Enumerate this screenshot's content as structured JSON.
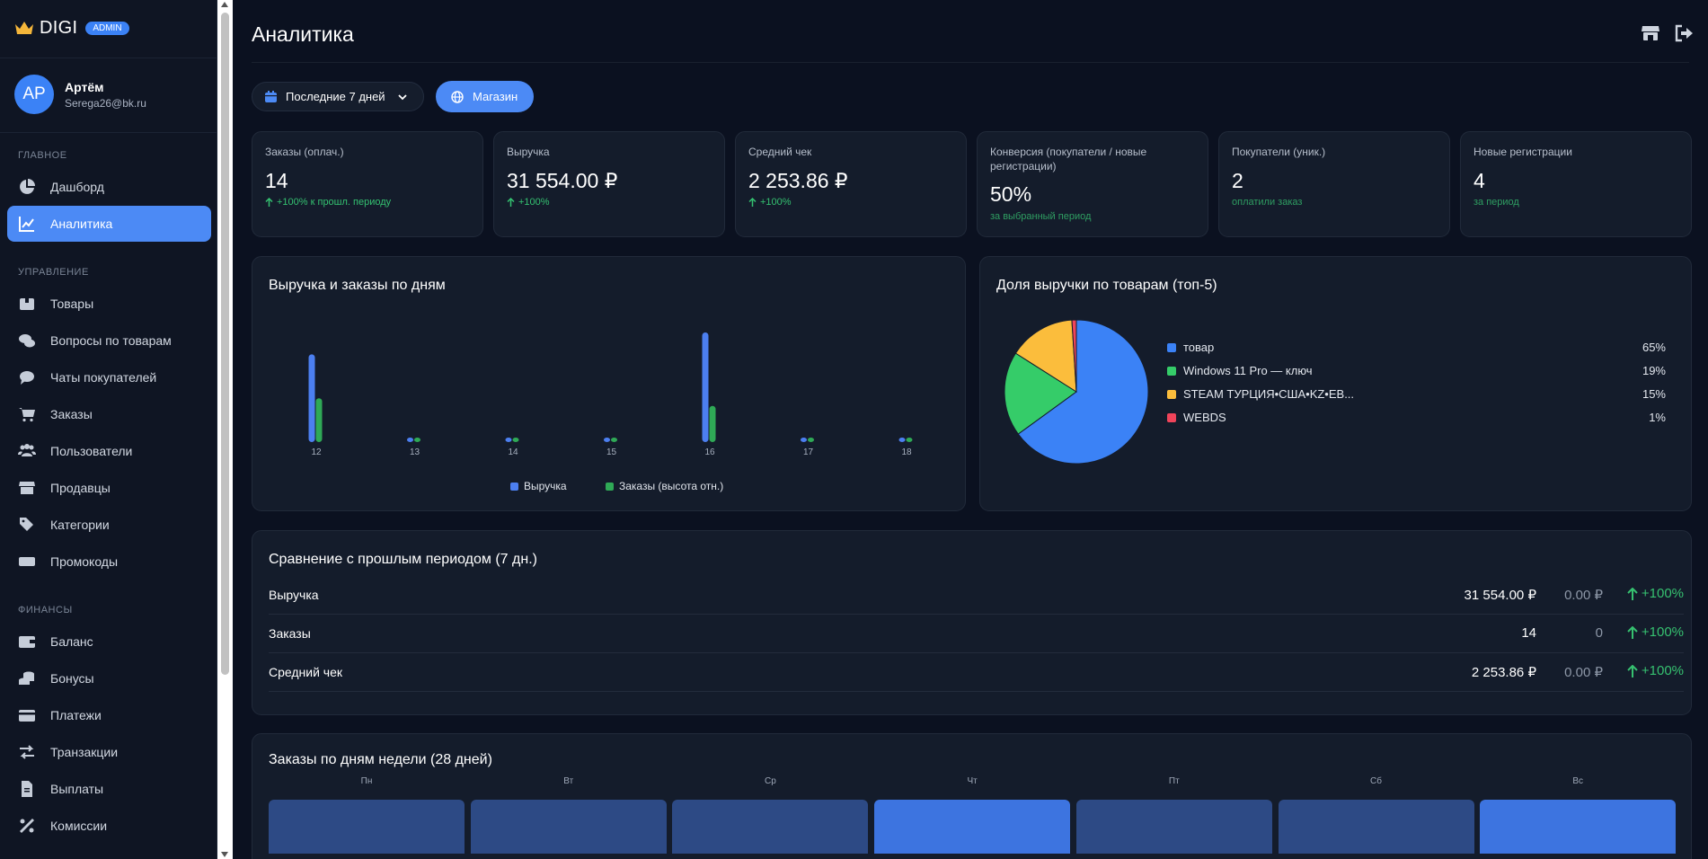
{
  "brand": {
    "name": "DIGI",
    "badge": "ADMIN"
  },
  "user": {
    "initials": "AP",
    "name": "Артём",
    "email": "Serega26@bk.ru"
  },
  "sidebar": {
    "sections": [
      "ГЛАВНОЕ",
      "УПРАВЛЕНИЕ",
      "ФИНАНСЫ"
    ],
    "items": [
      {
        "label": "Дашборд",
        "icon": "pie-chart-icon"
      },
      {
        "label": "Аналитика",
        "icon": "line-chart-icon",
        "active": true
      },
      {
        "label": "Товары",
        "icon": "box-icon"
      },
      {
        "label": "Вопросы по товарам",
        "icon": "comments-icon"
      },
      {
        "label": "Чаты покупателей",
        "icon": "chat-icon"
      },
      {
        "label": "Заказы",
        "icon": "cart-icon"
      },
      {
        "label": "Пользователи",
        "icon": "users-icon"
      },
      {
        "label": "Продавцы",
        "icon": "store-icon"
      },
      {
        "label": "Категории",
        "icon": "tags-icon"
      },
      {
        "label": "Промокоды",
        "icon": "ticket-icon"
      },
      {
        "label": "Баланс",
        "icon": "wallet-icon"
      },
      {
        "label": "Бонусы",
        "icon": "coins-icon"
      },
      {
        "label": "Платежи",
        "icon": "credit-card-icon"
      },
      {
        "label": "Транзакции",
        "icon": "exchange-icon"
      },
      {
        "label": "Выплаты",
        "icon": "invoice-icon"
      },
      {
        "label": "Комиссии",
        "icon": "percent-icon"
      }
    ]
  },
  "header": {
    "title": "Аналитика"
  },
  "filters": {
    "range_label": "Последние 7 дней",
    "shop_label": "Магазин"
  },
  "kpis": [
    {
      "label": "Заказы (оплач.)",
      "value": "14",
      "sub": "+100% к прошл. периоду",
      "arrow": true
    },
    {
      "label": "Выручка",
      "value": "31 554.00 ₽",
      "sub": "+100%",
      "arrow": true
    },
    {
      "label": "Средний чек",
      "value": "2 253.86 ₽",
      "sub": "+100%",
      "arrow": true
    },
    {
      "label": "Конверсия (покупатели / новые регистрации)",
      "value": "50%",
      "sub": "за выбранный период",
      "arrow": false
    },
    {
      "label": "Покупатели (уник.)",
      "value": "2",
      "sub": "оплатили заказ",
      "arrow": false
    },
    {
      "label": "Новые регистрации",
      "value": "4",
      "sub": "за период",
      "arrow": false
    }
  ],
  "revenue_chart": {
    "title": "Выручка и заказы по дням",
    "legend": [
      "Выручка",
      "Заказы (высота отн.)"
    ]
  },
  "pie_chart": {
    "title": "Доля выручки по товарам (топ-5)",
    "items": [
      {
        "label": "товар",
        "pct": "65%",
        "color": "#3b82f6"
      },
      {
        "label": "Windows 11 Pro — ключ",
        "pct": "19%",
        "color": "#35cc69"
      },
      {
        "label": "STEAM ТУРЦИЯ•США•KZ•ЕВ...",
        "pct": "15%",
        "color": "#fbbd3c"
      },
      {
        "label": "WEBDS",
        "pct": "1%",
        "color": "#f0445a"
      }
    ]
  },
  "comparison": {
    "title": "Сравнение с прошлым периодом (7 дн.)",
    "rows": [
      {
        "label": "Выручка",
        "current": "31 554.00 ₽",
        "previous": "0.00 ₽",
        "change": "+100%"
      },
      {
        "label": "Заказы",
        "current": "14",
        "previous": "0",
        "change": "+100%"
      },
      {
        "label": "Средний чек",
        "current": "2 253.86 ₽",
        "previous": "0.00 ₽",
        "change": "+100%"
      }
    ]
  },
  "weekday": {
    "title": "Заказы по дням недели (28 дней)",
    "days": [
      "Пн",
      "Вт",
      "Ср",
      "Чт",
      "Пт",
      "Сб",
      "Вс"
    ],
    "highlight": [
      false,
      false,
      false,
      true,
      false,
      false,
      true
    ]
  },
  "colors": {
    "accent": "#4c8af5",
    "revenue": "#4c7ff0",
    "orders": "#2fa956",
    "positive": "#36c170"
  },
  "chart_data": [
    {
      "type": "bar",
      "title": "Выручка и заказы по дням",
      "categories": [
        "12",
        "13",
        "14",
        "15",
        "16",
        "17",
        "18"
      ],
      "series": [
        {
          "name": "Выручка",
          "values": [
            0.8,
            0.0,
            0.0,
            0.0,
            1.0,
            0.0,
            0.0
          ]
        },
        {
          "name": "Заказы (высота отн.)",
          "values": [
            0.4,
            0.0,
            0.0,
            0.0,
            0.33,
            0.0,
            0.0
          ]
        }
      ]
    },
    {
      "type": "pie",
      "title": "Доля выручки по товарам (топ-5)",
      "categories": [
        "товар",
        "Windows 11 Pro — ключ",
        "STEAM ТУРЦИЯ•США•KZ•ЕВ...",
        "WEBDS"
      ],
      "values": [
        65,
        19,
        15,
        1
      ]
    }
  ]
}
